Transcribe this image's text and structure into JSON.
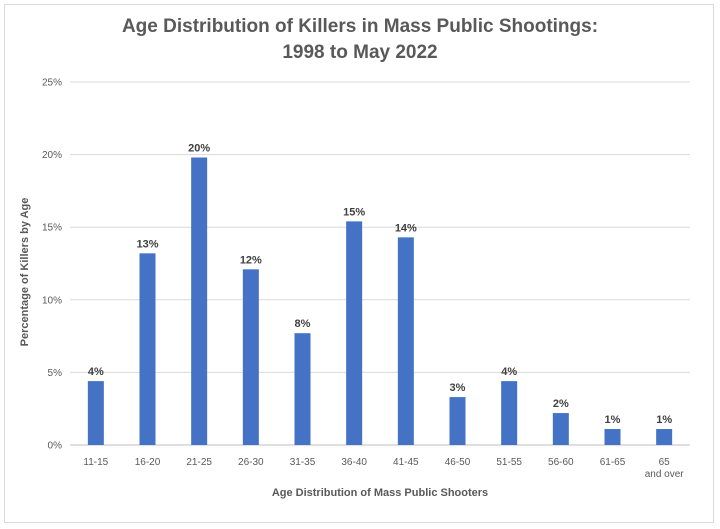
{
  "chart_data": {
    "type": "bar",
    "title_lines": [
      "Age Distribution of Killers in Mass Public Shootings:",
      "1998 to May 2022"
    ],
    "xlabel": "Age Distribution of Mass Public Shooters",
    "ylabel": "Percentage of Killers by Age",
    "categories": [
      "11-15",
      "16-20",
      "21-25",
      "26-30",
      "31-35",
      "36-40",
      "41-45",
      "46-50",
      "51-55",
      "56-60",
      "61-65",
      "65 and over"
    ],
    "values": [
      4.4,
      13.2,
      19.8,
      12.1,
      7.7,
      15.4,
      14.3,
      3.3,
      4.4,
      2.2,
      1.1,
      1.1
    ],
    "data_labels": [
      "4%",
      "13%",
      "20%",
      "12%",
      "8%",
      "15%",
      "14%",
      "3%",
      "4%",
      "2%",
      "1%",
      "1%"
    ],
    "y_ticks": [
      0,
      5,
      10,
      15,
      20,
      25
    ],
    "y_tick_labels": [
      "0%",
      "5%",
      "10%",
      "15%",
      "20%",
      "25%"
    ],
    "ylim": [
      0,
      25
    ],
    "grid": true,
    "legend": "none",
    "bar_color": "#4472C4",
    "grid_color": "#d9d9d9"
  }
}
